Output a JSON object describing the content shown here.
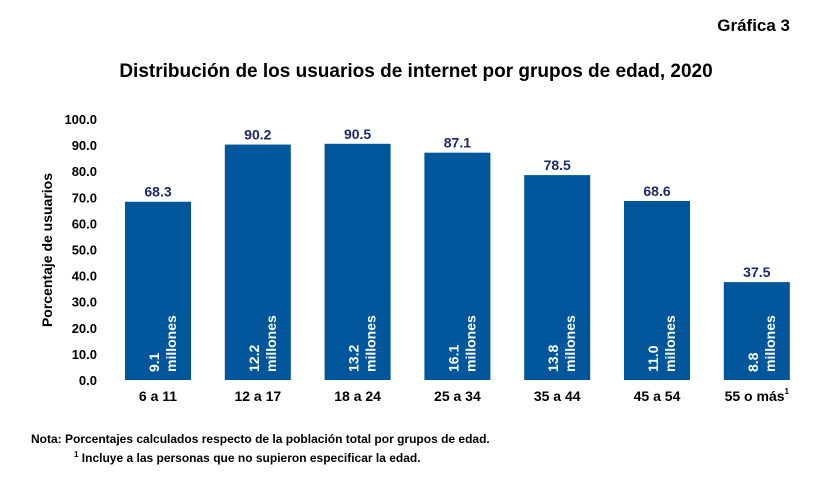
{
  "header": {
    "graph_number": "Gráfica 3"
  },
  "chart_data": {
    "type": "bar",
    "title": "Distribución de los usuarios de internet por grupos de edad, 2020",
    "xlabel": "",
    "ylabel": "Porcentaje de usuarios",
    "ylim": [
      0,
      100
    ],
    "yticks": [
      "0.0",
      "10.0",
      "20.0",
      "30.0",
      "40.0",
      "50.0",
      "60.0",
      "70.0",
      "80.0",
      "90.0",
      "100.0"
    ],
    "grid": false,
    "categories": [
      "6 a 11",
      "12 a 17",
      "18 a 24",
      "25 a 34",
      "35 a 44",
      "45 a 54",
      "55 o más"
    ],
    "category_superscripts": [
      "",
      "",
      "",
      "",
      "",
      "",
      "1"
    ],
    "values": [
      68.3,
      90.2,
      90.5,
      87.1,
      78.5,
      68.6,
      37.5
    ],
    "value_labels": [
      "68.3",
      "90.2",
      "90.5",
      "87.1",
      "78.5",
      "68.6",
      "37.5"
    ],
    "users_millions": [
      "9.1",
      "12.2",
      "13.2",
      "16.1",
      "13.8",
      "11.0",
      "8.8"
    ],
    "users_unit": "millones",
    "bar_color": "#00569a",
    "value_label_color": "#1a2a6c"
  },
  "notes": {
    "line1": "Nota: Porcentajes calculados respecto de la población total por grupos de edad.",
    "line2_marker": "1",
    "line2": "Incluye a las personas que no supieron especificar la edad."
  }
}
